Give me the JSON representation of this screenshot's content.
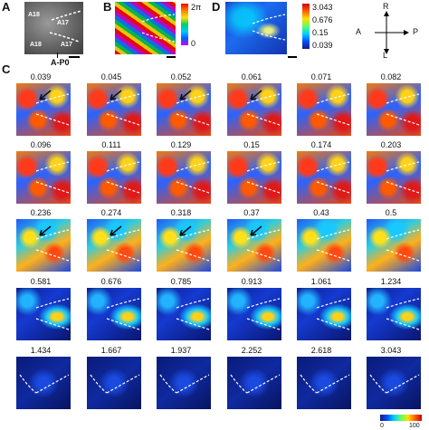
{
  "panels": {
    "a": {
      "letter": "A",
      "area_labels": [
        "A18",
        "A17",
        "A17",
        "A18"
      ],
      "axis_label": "A-P0"
    },
    "b": {
      "letter": "B",
      "cbar_top": "2π",
      "cbar_bottom": "0"
    },
    "d": {
      "letter": "D",
      "cbar_ticks": [
        "3.043",
        "0.676",
        "0.15",
        "0.039"
      ]
    },
    "compass": {
      "r": "R",
      "a": "A",
      "p": "P",
      "l": "L"
    },
    "c": {
      "letter": "C",
      "rows": [
        {
          "values": [
            "0.039",
            "0.045",
            "0.052",
            "0.061",
            "0.071",
            "0.082"
          ],
          "style": "hot"
        },
        {
          "values": [
            "0.096",
            "0.111",
            "0.129",
            "0.15",
            "0.174",
            "0.203"
          ],
          "style": "hot"
        },
        {
          "values": [
            "0.236",
            "0.274",
            "0.318",
            "0.37",
            "0.43",
            "0.5"
          ],
          "style": "warm"
        },
        {
          "values": [
            "0.581",
            "0.676",
            "0.785",
            "0.913",
            "1.061",
            "1.234"
          ],
          "style": "cool"
        },
        {
          "values": [
            "1.434",
            "1.667",
            "1.937",
            "2.252",
            "2.618",
            "3.043"
          ],
          "style": "cold"
        }
      ],
      "bottom_cbar": {
        "min": "0",
        "max": "100"
      }
    }
  },
  "colors": {
    "bg": "#ffffff",
    "dashed": "#ffffff",
    "arrow": "#111111"
  }
}
